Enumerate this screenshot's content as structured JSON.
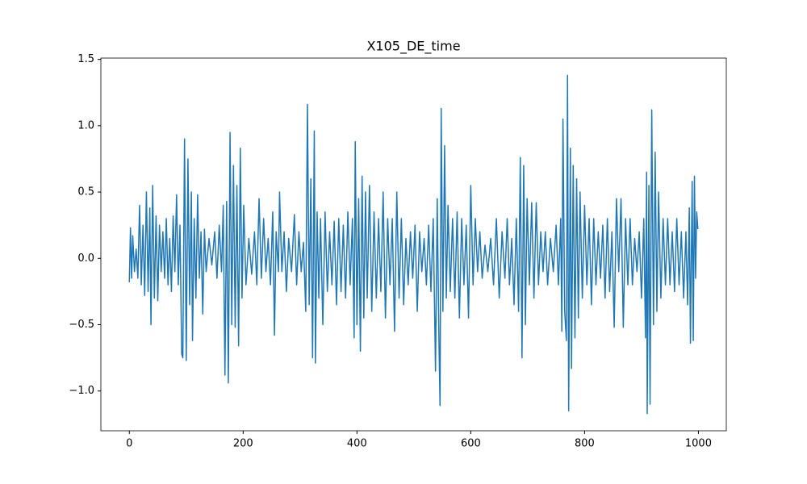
{
  "chart_data": {
    "type": "line",
    "title": "X105_DE_time",
    "x": [
      0,
      2,
      4,
      6,
      9,
      12,
      15,
      18,
      21,
      24,
      27,
      30,
      33,
      36,
      38,
      41,
      44,
      47,
      50,
      53,
      56,
      59,
      62,
      65,
      68,
      71,
      74,
      77,
      80,
      83,
      86,
      89,
      92,
      94,
      97,
      100,
      103,
      106,
      109,
      111,
      114,
      117,
      120,
      123,
      126,
      129,
      132,
      135,
      140,
      145,
      150,
      154,
      158,
      162,
      165,
      168,
      171,
      174,
      177,
      180,
      183,
      186,
      189,
      192,
      195,
      198,
      201,
      205,
      210,
      215,
      220,
      224,
      228,
      232,
      236,
      240,
      244,
      248,
      252,
      255,
      258,
      262,
      264,
      268,
      272,
      276,
      280,
      285,
      290,
      294,
      298,
      302,
      306,
      310,
      313,
      316,
      319,
      322,
      325,
      327,
      330,
      333,
      336,
      340,
      344,
      348,
      352,
      356,
      360,
      364,
      368,
      372,
      376,
      380,
      384,
      388,
      392,
      395,
      397,
      400,
      403,
      406,
      409,
      412,
      415,
      418,
      422,
      426,
      430,
      434,
      438,
      442,
      446,
      450,
      454,
      458,
      462,
      466,
      470,
      474,
      478,
      482,
      486,
      490,
      494,
      498,
      502,
      506,
      510,
      514,
      518,
      522,
      526,
      530,
      534,
      538,
      541,
      544,
      546,
      548,
      551,
      554,
      557,
      560,
      564,
      568,
      572,
      576,
      580,
      584,
      588,
      592,
      596,
      600,
      604,
      608,
      612,
      616,
      620,
      625,
      630,
      635,
      640,
      645,
      650,
      655,
      660,
      664,
      668,
      672,
      676,
      680,
      684,
      687,
      690,
      693,
      696,
      699,
      703,
      707,
      711,
      715,
      719,
      723,
      727,
      731,
      735,
      740,
      745,
      750,
      754,
      758,
      760,
      762,
      765,
      768,
      770,
      772,
      775,
      777,
      780,
      783,
      786,
      789,
      792,
      796,
      800,
      804,
      808,
      812,
      816,
      820,
      824,
      828,
      832,
      836,
      840,
      844,
      848,
      852,
      856,
      860,
      864,
      868,
      872,
      876,
      880,
      884,
      888,
      892,
      896,
      900,
      904,
      907,
      909,
      910,
      913,
      915,
      918,
      921,
      924,
      927,
      930,
      934,
      938,
      942,
      946,
      950,
      954,
      958,
      962,
      966,
      970,
      974,
      978,
      981,
      984,
      986,
      989,
      991,
      993,
      995,
      997,
      999
    ],
    "series": [
      {
        "color": "#1f77b4",
        "values": [
          -0.18,
          0.23,
          -0.15,
          0.17,
          -0.1,
          0.07,
          -0.15,
          0.4,
          -0.2,
          0.25,
          -0.28,
          0.5,
          -0.25,
          0.38,
          -0.5,
          0.55,
          -0.3,
          0.32,
          -0.32,
          0.25,
          -0.1,
          0.2,
          -0.15,
          0.3,
          -0.2,
          0.15,
          -0.25,
          0.32,
          -0.1,
          0.48,
          -0.2,
          0.25,
          -0.72,
          -0.75,
          0.9,
          -0.77,
          0.75,
          -0.35,
          0.5,
          -0.62,
          0.3,
          -0.3,
          0.48,
          -0.15,
          0.2,
          -0.42,
          0.22,
          -0.1,
          0.15,
          -0.05,
          0.2,
          -0.15,
          0.25,
          -0.1,
          0.4,
          -0.88,
          0.43,
          -0.94,
          0.95,
          -0.5,
          0.7,
          -0.52,
          0.55,
          -0.66,
          0.83,
          -0.3,
          0.4,
          -0.2,
          0.15,
          -0.12,
          0.2,
          -0.2,
          0.45,
          -0.15,
          0.3,
          -0.1,
          0.15,
          -0.2,
          0.35,
          -0.58,
          0.2,
          -0.1,
          0.5,
          -0.1,
          0.2,
          -0.25,
          0.15,
          -0.1,
          0.33,
          -0.2,
          0.2,
          -0.1,
          0.12,
          -0.4,
          1.16,
          -0.35,
          0.6,
          -0.75,
          0.96,
          -0.79,
          0.35,
          -0.3,
          0.3,
          -0.5,
          0.35,
          -0.25,
          0.2,
          -0.2,
          0.28,
          -0.35,
          0.3,
          -0.25,
          0.25,
          -0.3,
          0.35,
          -0.2,
          0.3,
          -0.6,
          0.88,
          -0.5,
          0.45,
          -0.7,
          0.62,
          -0.45,
          0.5,
          -0.3,
          0.55,
          -0.4,
          0.35,
          -0.3,
          0.3,
          -0.25,
          0.5,
          -0.45,
          0.3,
          -0.2,
          0.3,
          -0.55,
          0.5,
          -0.3,
          0.3,
          -0.35,
          0.15,
          -0.2,
          0.2,
          -0.15,
          0.25,
          -0.4,
          0.2,
          -0.1,
          0.15,
          -0.2,
          0.25,
          -0.25,
          0.3,
          -0.85,
          0.45,
          -0.6,
          -1.11,
          1.13,
          -0.4,
          0.85,
          -0.3,
          0.4,
          -0.25,
          0.3,
          -0.3,
          0.35,
          -0.45,
          0.3,
          -0.2,
          0.25,
          -0.45,
          0.55,
          -0.2,
          0.3,
          -0.1,
          0.2,
          -0.15,
          0.1,
          -0.1,
          0.15,
          -0.2,
          0.3,
          -0.3,
          0.2,
          -0.15,
          0.3,
          -0.2,
          0.15,
          -0.35,
          0.3,
          -0.4,
          0.76,
          -0.75,
          0.7,
          -0.5,
          0.45,
          -0.2,
          0.42,
          -0.3,
          0.42,
          -0.2,
          0.2,
          -0.1,
          0.2,
          -0.2,
          0.15,
          -0.1,
          0.25,
          -0.2,
          0.3,
          -0.55,
          1.05,
          -0.4,
          -0.62,
          1.38,
          -1.15,
          0.83,
          -0.83,
          0.7,
          -0.6,
          0.6,
          -0.45,
          0.5,
          -0.3,
          0.4,
          -0.2,
          0.3,
          -0.35,
          0.3,
          -0.2,
          0.2,
          -0.15,
          0.25,
          -0.3,
          0.3,
          -0.25,
          0.2,
          -0.52,
          0.45,
          -0.1,
          0.45,
          -0.52,
          0.3,
          -0.2,
          0.3,
          -0.2,
          0.15,
          -0.1,
          0.2,
          -0.3,
          0.3,
          -0.6,
          0.65,
          -1.17,
          0.55,
          -1.1,
          1.12,
          -0.5,
          0.8,
          -0.4,
          0.5,
          -0.3,
          0.3,
          -0.2,
          0.3,
          -0.2,
          0.2,
          -0.25,
          0.3,
          -0.2,
          0.2,
          -0.3,
          0.2,
          -0.35,
          0.38,
          -0.64,
          0.58,
          -0.62,
          0.62,
          -0.15,
          0.35,
          0.22
        ]
      }
    ],
    "xlim": [
      -50,
      1049
    ],
    "xticks": [
      0,
      200,
      400,
      600,
      800,
      1000
    ],
    "ylim": [
      -1.3,
      1.51
    ],
    "yticks": [
      {
        "value": -1,
        "label": "−1.0"
      },
      {
        "value": -0.5,
        "label": "−0.5"
      },
      {
        "value": 0,
        "label": "0.0"
      },
      {
        "value": 0.5,
        "label": "0.5"
      },
      {
        "value": 1,
        "label": "1.0"
      },
      {
        "value": 1.5,
        "label": "1.5"
      }
    ],
    "grid": false
  }
}
